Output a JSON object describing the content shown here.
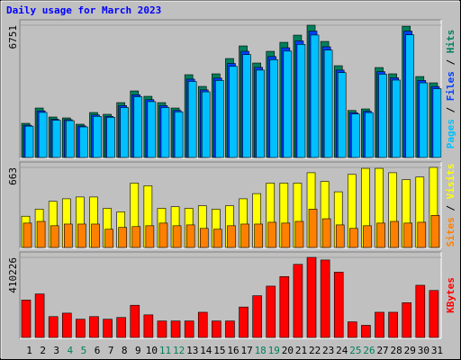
{
  "title": "Daily usage for March 2023",
  "legend_separator": " / ",
  "chart_data": [
    {
      "type": "bar",
      "ylim": [
        0,
        6751
      ],
      "yticks": [
        6751
      ],
      "series": [
        {
          "name": "Hits",
          "color": "#00805c",
          "values": [
            1744,
            2525,
            2066,
            2020,
            1699,
            2296,
            2204,
            2800,
            3397,
            3122,
            2800,
            2525,
            4224,
            3627,
            4270,
            5050,
            5693,
            4821,
            5418,
            5877,
            6244,
            6751,
            5923,
            4683,
            2400,
            2479,
            4590,
            4270,
            6700,
            4131,
            3810
          ]
        },
        {
          "name": "Files",
          "color": "#0040ff",
          "values": [
            1650,
            2380,
            1950,
            1930,
            1610,
            2170,
            2100,
            2650,
            3200,
            2950,
            2650,
            2400,
            4000,
            3450,
            4050,
            4800,
            5420,
            4600,
            5150,
            5600,
            5950,
            6450,
            5650,
            4460,
            2290,
            2360,
            4380,
            4070,
            6450,
            3930,
            3620
          ]
        },
        {
          "name": "Pages",
          "color": "#00c0ff",
          "values": [
            1600,
            2300,
            1900,
            1880,
            1560,
            2100,
            2050,
            2550,
            3100,
            2850,
            2550,
            2330,
            3880,
            3350,
            3930,
            4650,
            5250,
            4460,
            4990,
            5430,
            5770,
            6250,
            5480,
            4330,
            2220,
            2290,
            4250,
            3950,
            6260,
            3810,
            3510
          ]
        }
      ]
    },
    {
      "type": "bar",
      "ylim": [
        0,
        663
      ],
      "yticks": [
        663
      ],
      "series": [
        {
          "name": "Visits",
          "color": "#ffff00",
          "values": [
            259,
            317,
            382,
            403,
            418,
            418,
            324,
            295,
            533,
            511,
            324,
            338,
            324,
            346,
            317,
            346,
            403,
            446,
            533,
            533,
            533,
            619,
            547,
            461,
            605,
            655,
            655,
            619,
            562,
            583,
            663
          ]
        },
        {
          "name": "Sites",
          "color": "#ff8000",
          "values": [
            202,
            216,
            180,
            194,
            194,
            194,
            151,
            166,
            173,
            180,
            202,
            180,
            187,
            158,
            151,
            180,
            194,
            194,
            209,
            202,
            216,
            317,
            238,
            187,
            158,
            180,
            202,
            216,
            202,
            209,
            266
          ]
        }
      ]
    },
    {
      "type": "bar",
      "ylim": [
        0,
        410226
      ],
      "yticks": [
        410226
      ],
      "categories": [
        "1",
        "2",
        "3",
        "4",
        "5",
        "6",
        "7",
        "8",
        "9",
        "10",
        "11",
        "12",
        "13",
        "14",
        "15",
        "16",
        "17",
        "18",
        "19",
        "20",
        "21",
        "22",
        "23",
        "24",
        "25",
        "26",
        "27",
        "28",
        "29",
        "30",
        "31"
      ],
      "category_colors": [
        "#000000",
        "#000000",
        "#000000",
        "#00805c",
        "#00805c",
        "#000000",
        "#000000",
        "#000000",
        "#000000",
        "#000000",
        "#00805c",
        "#00805c",
        "#000000",
        "#000000",
        "#000000",
        "#000000",
        "#000000",
        "#00805c",
        "#00805c",
        "#000000",
        "#000000",
        "#000000",
        "#000000",
        "#000000",
        "#00805c",
        "#00805c",
        "#000000",
        "#000000",
        "#000000",
        "#000000",
        "#000000"
      ],
      "series": [
        {
          "name": "KBytes",
          "color": "#ff0000",
          "values": [
            191737,
            222950,
            107016,
            124852,
            93639,
            107016,
            93639,
            102557,
            164983,
            115934,
            84721,
            84721,
            84721,
            129311,
            84721,
            84721,
            156065,
            214032,
            263081,
            312130,
            374556,
            410226,
            396851,
            334425,
            80262,
            62426,
            129311,
            129311,
            178360,
            267540,
            240786
          ]
        }
      ]
    }
  ]
}
